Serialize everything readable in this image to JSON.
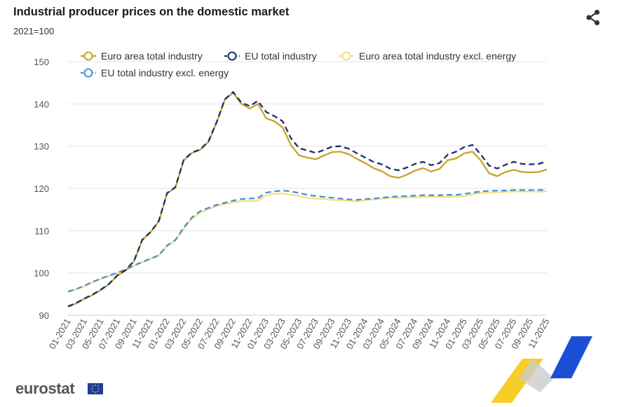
{
  "header": {
    "title": "Industrial producer prices on the domestic market",
    "subtitle": "2021=100"
  },
  "footer": {
    "logo_text": "eurostat",
    "logo_flag": "eu-flag-icon"
  },
  "colors": {
    "euro_area": "#c9a227",
    "eu": "#1c2f6b",
    "euro_area_excl": "#f2e27a",
    "eu_excl": "#4a90d9",
    "grid": "#e3e3e3",
    "accent_yellow": "#f7c500",
    "accent_blue": "#1a4fd6"
  },
  "chart_data": {
    "type": "line",
    "title": "Industrial producer prices on the domestic market",
    "ylabel": "2021=100",
    "ylim": [
      90,
      150
    ],
    "yticks": [
      90,
      100,
      110,
      120,
      130,
      140,
      150
    ],
    "grid": true,
    "legend_position": "top",
    "x": [
      "01-2021",
      "02-2021",
      "03-2021",
      "04-2021",
      "05-2021",
      "06-2021",
      "07-2021",
      "08-2021",
      "09-2021",
      "10-2021",
      "11-2021",
      "12-2021",
      "01-2022",
      "02-2022",
      "03-2022",
      "04-2022",
      "05-2022",
      "06-2022",
      "07-2022",
      "08-2022",
      "09-2022",
      "10-2022",
      "11-2022",
      "12-2022",
      "01-2023",
      "02-2023",
      "03-2023",
      "04-2023",
      "05-2023",
      "06-2023",
      "07-2023",
      "08-2023",
      "09-2023",
      "10-2023",
      "11-2023",
      "12-2023",
      "01-2024",
      "02-2024",
      "03-2024",
      "04-2024",
      "05-2024",
      "06-2024",
      "07-2024",
      "08-2024",
      "09-2024",
      "10-2024",
      "11-2024",
      "12-2024",
      "01-2025",
      "02-2025",
      "03-2025",
      "04-2025",
      "05-2025",
      "06-2025",
      "07-2025",
      "08-2025",
      "09-2025",
      "10-2025",
      "11-2025"
    ],
    "xticks": [
      "01-2021",
      "03-2021",
      "05-2021",
      "07-2021",
      "09-2021",
      "11-2021",
      "01-2022",
      "03-2022",
      "05-2022",
      "07-2022",
      "09-2022",
      "11-2022",
      "01-2023",
      "03-2023",
      "05-2023",
      "07-2023",
      "09-2023",
      "11-2023",
      "01-2024",
      "03-2024",
      "05-2024",
      "07-2024",
      "09-2024",
      "11-2024",
      "01-2025",
      "03-2025",
      "05-2025",
      "07-2025",
      "09-2025",
      "11-2025"
    ],
    "series": [
      {
        "name": "Euro area total industry",
        "style": "solid",
        "color": "#c9a227",
        "values": [
          92.0,
          92.8,
          93.9,
          94.8,
          96.0,
          97.4,
          99.4,
          100.6,
          102.8,
          107.8,
          109.6,
          112.2,
          118.8,
          120.2,
          126.6,
          128.4,
          129.1,
          131.0,
          135.6,
          141.0,
          142.7,
          140.0,
          138.9,
          140.0,
          136.6,
          135.9,
          134.4,
          130.3,
          127.8,
          127.3,
          126.9,
          127.8,
          128.6,
          128.7,
          128.1,
          127.0,
          126.0,
          124.8,
          124.1,
          122.9,
          122.5,
          123.2,
          124.2,
          124.8,
          124.0,
          124.6,
          126.7,
          127.1,
          128.3,
          128.7,
          126.6,
          123.6,
          122.9,
          123.9,
          124.4,
          123.9,
          123.8,
          123.9,
          124.5
        ]
      },
      {
        "name": "EU total industry",
        "style": "dashed",
        "color": "#1c2f6b",
        "values": [
          92.1,
          92.9,
          94.0,
          94.9,
          96.1,
          97.5,
          99.5,
          100.7,
          102.9,
          107.9,
          109.7,
          112.3,
          118.9,
          120.3,
          126.7,
          128.5,
          129.2,
          131.1,
          135.7,
          141.1,
          142.8,
          140.3,
          139.5,
          140.7,
          138.1,
          137.1,
          135.9,
          131.9,
          129.5,
          129.0,
          128.4,
          129.1,
          129.9,
          130.0,
          129.4,
          128.3,
          127.3,
          126.3,
          125.7,
          124.7,
          124.3,
          124.9,
          125.8,
          126.3,
          125.5,
          126.0,
          128.0,
          128.7,
          129.8,
          130.3,
          128.0,
          125.4,
          124.7,
          125.6,
          126.3,
          125.8,
          125.7,
          125.8,
          126.4
        ]
      },
      {
        "name": "Euro area total industry excl. energy",
        "style": "solid",
        "color": "#f2e27a",
        "values": [
          95.5,
          96.1,
          96.9,
          97.8,
          98.6,
          99.3,
          100.0,
          100.7,
          101.7,
          102.5,
          103.3,
          104.1,
          106.3,
          107.6,
          110.4,
          112.8,
          114.3,
          115.1,
          115.8,
          116.3,
          116.7,
          117.0,
          117.0,
          117.1,
          118.4,
          118.7,
          118.8,
          118.5,
          118.2,
          117.8,
          117.6,
          117.5,
          117.3,
          117.2,
          117.1,
          117.0,
          117.2,
          117.4,
          117.6,
          117.8,
          117.8,
          117.9,
          117.9,
          118.0,
          118.0,
          118.0,
          118.1,
          118.1,
          118.2,
          118.6,
          118.9,
          119.0,
          119.1,
          119.2,
          119.3,
          119.3,
          119.3,
          119.2,
          119.3
        ]
      },
      {
        "name": "EU total industry excl. energy",
        "style": "dashed",
        "color": "#4a90d9",
        "values": [
          95.6,
          96.2,
          97.0,
          97.9,
          98.7,
          99.4,
          100.1,
          100.8,
          101.8,
          102.6,
          103.4,
          104.2,
          106.5,
          107.8,
          110.7,
          113.1,
          114.6,
          115.4,
          116.1,
          116.6,
          117.1,
          117.5,
          117.6,
          117.7,
          119.0,
          119.3,
          119.5,
          119.3,
          118.9,
          118.5,
          118.2,
          118.0,
          117.8,
          117.6,
          117.4,
          117.3,
          117.5,
          117.6,
          117.8,
          118.0,
          118.1,
          118.2,
          118.3,
          118.4,
          118.4,
          118.4,
          118.5,
          118.5,
          118.7,
          119.0,
          119.3,
          119.4,
          119.5,
          119.5,
          119.6,
          119.6,
          119.6,
          119.6,
          119.7
        ]
      }
    ]
  }
}
